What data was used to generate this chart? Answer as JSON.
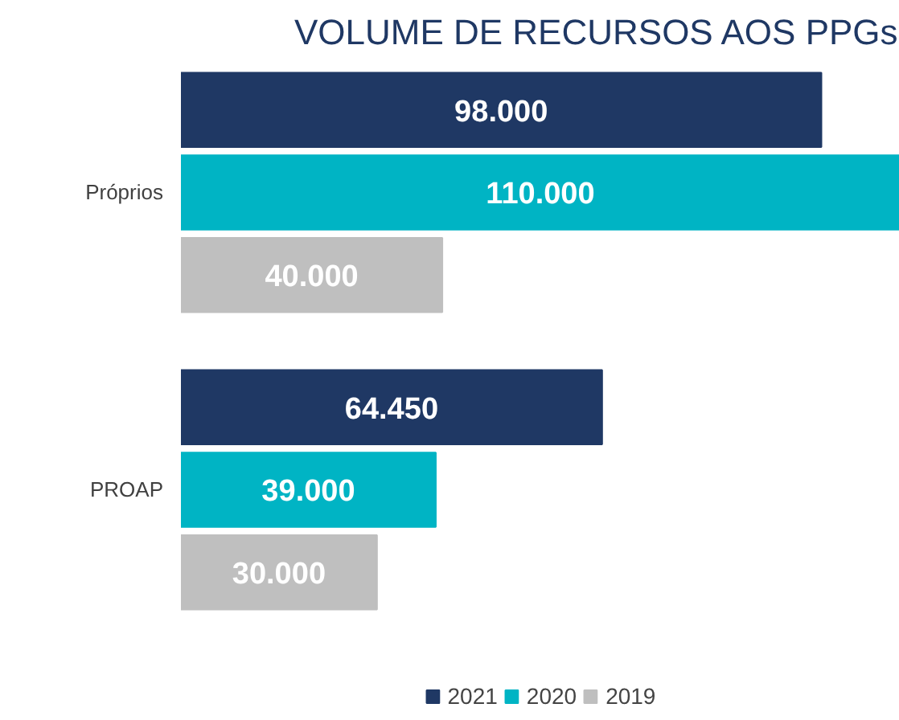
{
  "chart_data": {
    "type": "bar",
    "orientation": "horizontal",
    "title": "VOLUME DE RECURSOS AOS PPGs",
    "categories": [
      "Próprios",
      "PROAP"
    ],
    "series": [
      {
        "name": "2021",
        "color": "#1f3864",
        "values": [
          98000,
          64450
        ],
        "value_labels": [
          "98.000",
          "64.450"
        ]
      },
      {
        "name": "2020",
        "color": "#00b4c4",
        "values": [
          110000,
          39000
        ],
        "value_labels": [
          "110.000",
          "39.000"
        ]
      },
      {
        "name": "2019",
        "color": "#bfbfbf",
        "values": [
          40000,
          30000
        ],
        "value_labels": [
          "40.000",
          "30.000"
        ]
      }
    ],
    "legend": "bottom"
  }
}
